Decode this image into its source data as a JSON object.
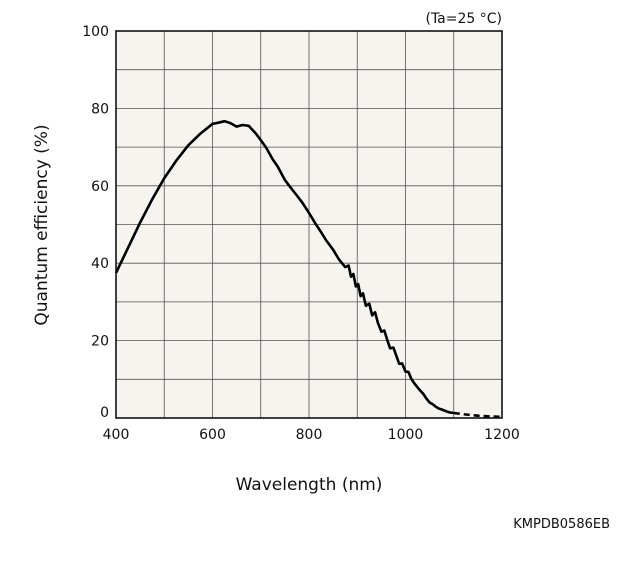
{
  "chart_data": {
    "type": "line",
    "condition": "(Ta=25 °C)",
    "xlabel": "Wavelength (nm)",
    "ylabel": "Quantum efficiency (%)",
    "xlim": [
      400,
      1200
    ],
    "ylim": [
      0,
      100
    ],
    "x_ticks": [
      400,
      600,
      800,
      1000,
      1200
    ],
    "x_tick_labels": [
      "400",
      "600",
      "800",
      "1000",
      "1200"
    ],
    "y_ticks": [
      0,
      20,
      40,
      60,
      80,
      100
    ],
    "y_tick_labels": [
      "0",
      "20",
      "40",
      "60",
      "80",
      "100"
    ],
    "grid": true,
    "series": [
      {
        "style": "solid",
        "x": [
          400,
          425,
          450,
          475,
          500,
          525,
          550,
          575,
          600,
          612,
          625,
          637,
          650,
          662,
          675,
          690,
          700,
          712,
          725,
          735,
          750,
          762,
          775,
          787,
          800,
          812,
          825,
          835,
          850,
          862,
          875,
          882,
          887,
          892,
          897,
          902,
          907,
          912,
          918,
          925,
          931,
          937,
          943,
          950,
          956,
          962,
          968,
          975,
          981,
          987,
          993,
          1000,
          1006,
          1012,
          1018,
          1025,
          1031,
          1037,
          1043,
          1050,
          1056,
          1062,
          1068,
          1075,
          1081,
          1087,
          1093,
          1100
        ],
        "y": [
          37.5,
          44,
          50.5,
          56.5,
          62,
          66.5,
          70.5,
          73.5,
          76,
          76.3,
          76.7,
          76.2,
          75.3,
          75.7,
          75.5,
          73.5,
          71.8,
          69.7,
          66.8,
          65,
          61.5,
          59.5,
          57.5,
          55.5,
          53,
          50.5,
          48,
          46,
          43.5,
          41,
          39,
          39.4,
          36.5,
          37.2,
          34,
          34.6,
          31.5,
          32.2,
          29,
          29.5,
          26.5,
          27.3,
          24.5,
          22.3,
          22.6,
          20.2,
          18,
          18.2,
          16.1,
          14,
          14.1,
          12,
          11.9,
          10.1,
          9,
          7.9,
          7,
          6.2,
          5.1,
          4,
          3.6,
          3,
          2.5,
          2.2,
          1.9,
          1.6,
          1.4,
          1.3
        ]
      },
      {
        "style": "dashed",
        "x": [
          1100,
          1125,
          1150,
          1175,
          1200
        ],
        "y": [
          1.3,
          0.9,
          0.6,
          0.4,
          0.3
        ]
      }
    ]
  },
  "footer": {
    "code": "KMPDB0586EB"
  },
  "colors": {
    "plot_background": "#f5f4ee",
    "grid": "#555555",
    "curve": "#000000"
  }
}
